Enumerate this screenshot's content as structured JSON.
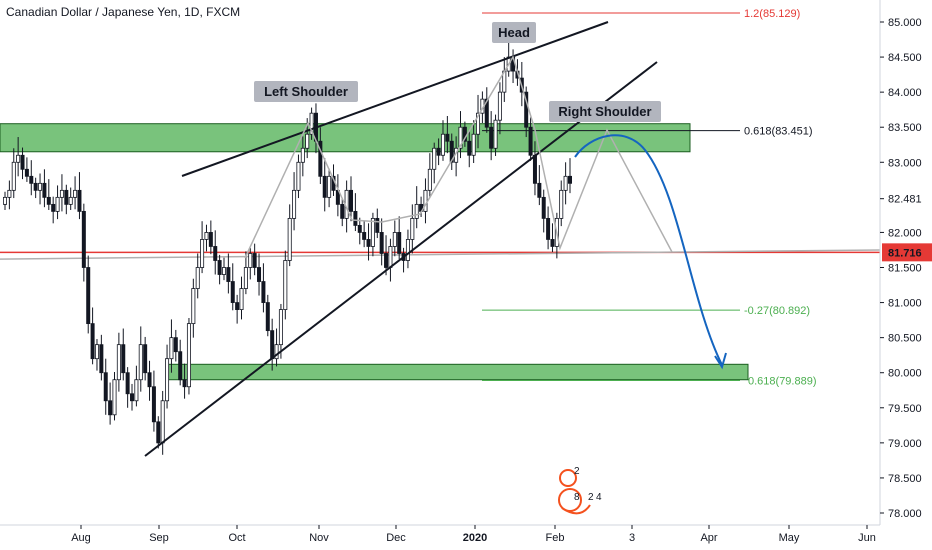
{
  "title": "Canadian Dollar / Japanese Yen, 1D, FXCM",
  "colors": {
    "up": "#131722",
    "down": "#131722",
    "zone_fill": "#4caf50",
    "zone_stroke": "#1b5e20",
    "red": "#e53935",
    "green_line": "#4caf50",
    "arrow": "#1565c0",
    "gray_line": "#b0b0b0",
    "label_bg": "#b2b5be"
  },
  "annotations": {
    "left_shoulder": "Left Shoulder",
    "head": "Head",
    "right_shoulder": "Right Shoulder"
  },
  "fib_labels": {
    "f1": "1.2(85.129)",
    "f2": "0.618(83.451)",
    "f3": "-0.27(80.892)",
    "f4": "0.618(79.889)"
  },
  "price_tags": {
    "current": "81.716",
    "mid": "82.481"
  },
  "watermark": {
    "t1": "2",
    "t2": "8",
    "t3": "2",
    "t4": "4"
  },
  "chart_data": {
    "type": "candlestick",
    "title": "Canadian Dollar / Japanese Yen, 1D, FXCM",
    "y_axis": {
      "ticks": [
        "85.000",
        "84.500",
        "84.000",
        "83.500",
        "83.000",
        "82.481",
        "82.000",
        "81.716",
        "81.500",
        "81.000",
        "80.500",
        "80.000",
        "79.500",
        "79.000",
        "78.500",
        "78.000"
      ],
      "ylim": [
        77.95,
        85.35
      ]
    },
    "x_axis": {
      "ticks": [
        "Aug",
        "Sep",
        "Oct",
        "Nov",
        "Dec",
        "2020",
        "Feb",
        "3",
        "Apr",
        "May",
        "Jun"
      ]
    },
    "close_path": [
      82.5,
      82.6,
      83.0,
      83.1,
      82.9,
      82.8,
      82.7,
      82.6,
      82.7,
      82.5,
      82.4,
      82.3,
      82.5,
      82.6,
      82.4,
      82.5,
      82.6,
      82.3,
      81.5,
      80.7,
      80.2,
      80.4,
      80.0,
      79.6,
      79.4,
      79.9,
      80.4,
      80.0,
      79.7,
      79.6,
      79.9,
      80.4,
      80.0,
      79.8,
      79.3,
      79.0,
      79.6,
      80.2,
      80.5,
      80.3,
      79.9,
      79.8,
      80.7,
      81.2,
      81.5,
      81.9,
      82.0,
      81.8,
      81.6,
      81.4,
      81.5,
      81.3,
      81.0,
      80.9,
      81.2,
      81.5,
      81.7,
      81.5,
      81.3,
      81.0,
      80.6,
      80.2,
      80.4,
      80.9,
      81.6,
      82.2,
      82.6,
      83.0,
      83.2,
      83.4,
      83.7,
      83.3,
      82.8,
      82.5,
      82.8,
      82.6,
      82.4,
      82.2,
      82.6,
      82.3,
      82.1,
      82.0,
      81.9,
      81.8,
      82.2,
      82.0,
      81.7,
      81.5,
      81.8,
      82.0,
      81.7,
      81.6,
      81.9,
      82.2,
      82.4,
      82.3,
      82.6,
      82.9,
      83.2,
      83.1,
      83.4,
      83.3,
      83.0,
      83.2,
      83.5,
      83.3,
      83.1,
      83.4,
      83.7,
      83.9,
      83.5,
      83.2,
      83.6,
      84.0,
      84.3,
      84.5,
      84.3,
      84.2,
      84.0,
      83.5,
      83.1,
      82.7,
      82.5,
      82.2,
      81.9,
      81.8,
      82.2,
      82.6,
      82.8,
      82.7
    ],
    "levels": [
      {
        "label": "1.2(85.129)",
        "value": 85.129
      },
      {
        "label": "0.618(83.451)",
        "value": 83.451
      },
      {
        "label": "-0.27(80.892)",
        "value": 80.892
      },
      {
        "label": "0.618(79.889)",
        "value": 79.889
      }
    ],
    "current_price": 81.716,
    "zones": [
      {
        "from": 83.15,
        "to": 83.55
      },
      {
        "from": 79.9,
        "to": 80.12
      }
    ],
    "legend": "none",
    "grid": false
  }
}
